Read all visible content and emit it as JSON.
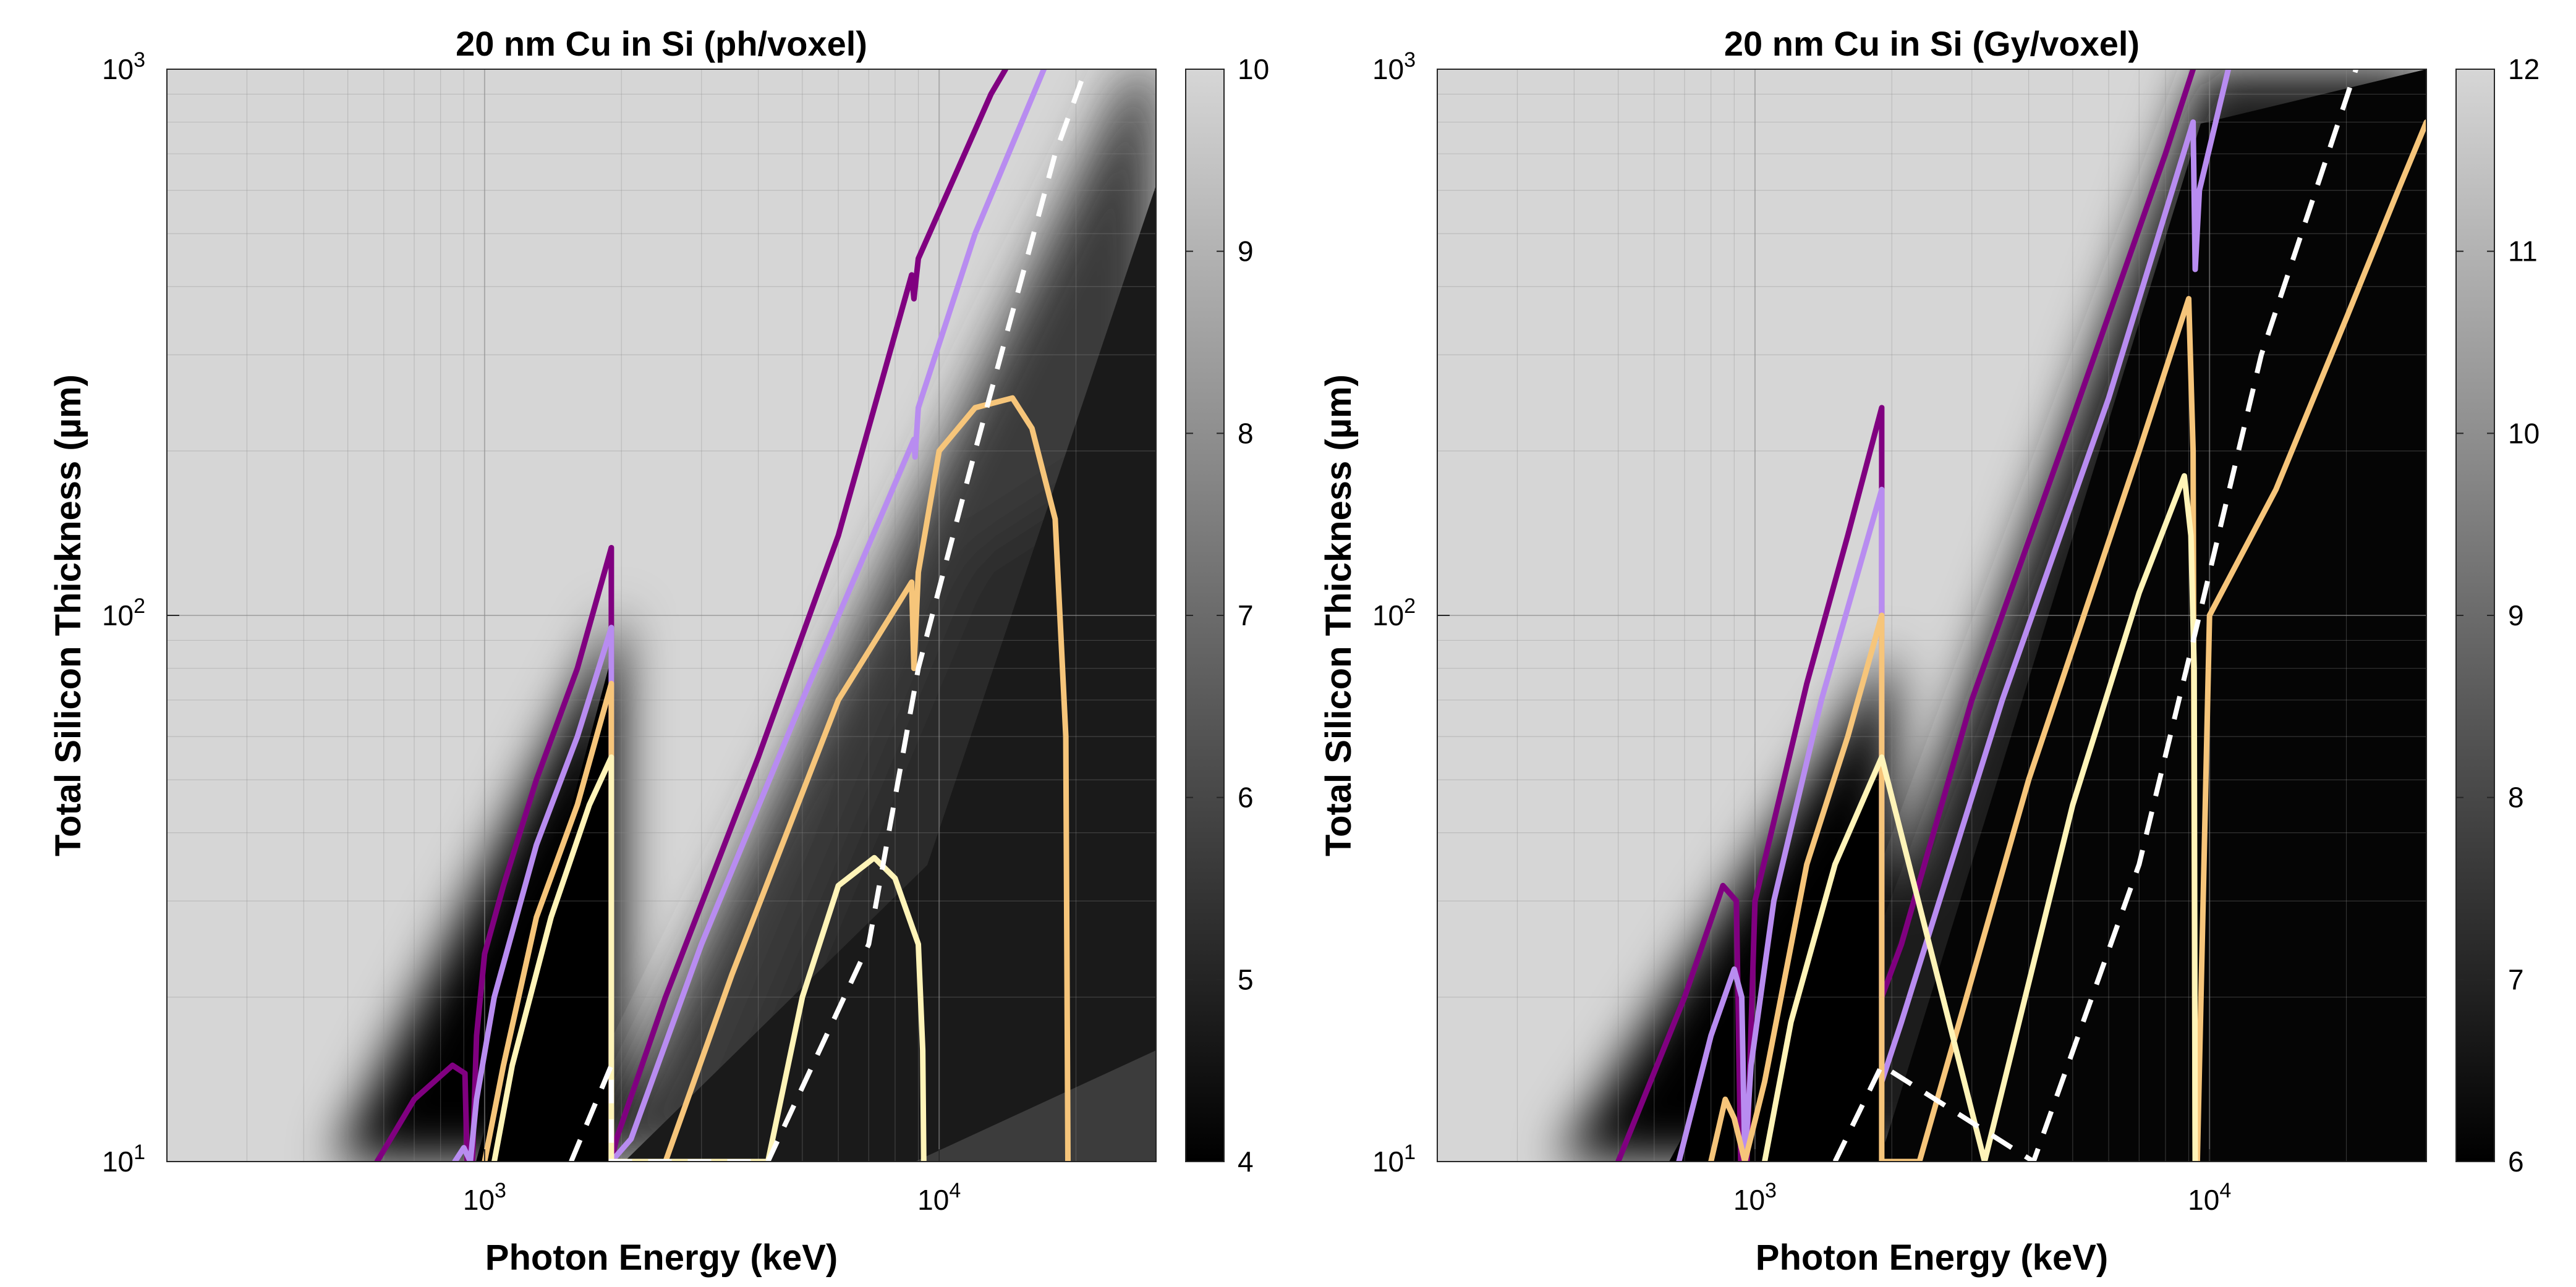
{
  "chart_data": [
    {
      "type": "heatmap",
      "title": "20 nm Cu in Si (ph/voxel)",
      "xlabel": "Photon Energy (keV)",
      "ylabel": "Total Silicon Thickness (µm)",
      "x_scale": "log",
      "y_scale": "log",
      "xlim": [
        200,
        30000
      ],
      "ylim": [
        10,
        1000
      ],
      "x_ticks": [
        {
          "value": 1000,
          "base": "10",
          "exp": "3"
        },
        {
          "value": 10000,
          "base": "10",
          "exp": "4"
        }
      ],
      "y_ticks": [
        {
          "value": 10,
          "base": "10",
          "exp": "1"
        },
        {
          "value": 100,
          "base": "10",
          "exp": "2"
        },
        {
          "value": 1000,
          "base": "10",
          "exp": "3"
        }
      ],
      "grid": true,
      "colorbar": {
        "min": 4,
        "max": 10,
        "ticks": [
          "4",
          "5",
          "6",
          "7",
          "8",
          "9",
          "10"
        ],
        "colormap": "gray"
      },
      "colors": {
        "purple": "#800080",
        "lavender": "#b88cf0",
        "orange": "#f6c57a",
        "cream": "#fff4b8",
        "white_dashed": "#ffffff"
      },
      "series": [
        {
          "color": "#800080",
          "points": [
            [
              580,
              10
            ],
            [
              700,
              13
            ],
            [
              850,
              15
            ],
            [
              905,
              14.5
            ],
            [
              915,
              10
            ],
            [
              940,
              10
            ],
            [
              960,
              17
            ],
            [
              1000,
              24
            ],
            [
              1100,
              32
            ],
            [
              1300,
              50
            ],
            [
              1600,
              80
            ],
            [
              1900,
              133
            ],
            [
              1900,
              10
            ],
            [
              1950,
              11
            ],
            [
              2500,
              20
            ],
            [
              4000,
              55
            ],
            [
              6000,
              140
            ],
            [
              8700,
              420
            ],
            [
              8800,
              380
            ],
            [
              9000,
              450
            ],
            [
              13000,
              900
            ],
            [
              14000,
              1000
            ]
          ]
        },
        {
          "color": "#b88cf0",
          "points": [
            [
              860,
              10
            ],
            [
              900,
              10.6
            ],
            [
              930,
              10
            ],
            [
              960,
              13
            ],
            [
              1050,
              20
            ],
            [
              1300,
              38
            ],
            [
              1600,
              60
            ],
            [
              1900,
              95
            ],
            [
              1900,
              10
            ],
            [
              2100,
              11
            ],
            [
              3000,
              25
            ],
            [
              5000,
              70
            ],
            [
              8800,
              210
            ],
            [
              8850,
              195
            ],
            [
              9000,
              240
            ],
            [
              12000,
              500
            ],
            [
              17000,
              1000
            ]
          ]
        },
        {
          "color": "#f6c57a",
          "points": [
            [
              1000,
              10
            ],
            [
              1100,
              15
            ],
            [
              1300,
              28
            ],
            [
              1600,
              45
            ],
            [
              1900,
              75
            ],
            [
              1900,
              10
            ],
            [
              2500,
              10
            ],
            [
              3500,
              22
            ],
            [
              6000,
              70
            ],
            [
              8700,
              115
            ],
            [
              8800,
              80
            ],
            [
              9000,
              120
            ],
            [
              10000,
              200
            ],
            [
              12000,
              240
            ],
            [
              14500,
              250
            ],
            [
              16000,
              220
            ],
            [
              18000,
              150
            ],
            [
              19000,
              60
            ],
            [
              19200,
              10
            ]
          ]
        },
        {
          "color": "#fff4b8",
          "points": [
            [
              1050,
              10
            ],
            [
              1150,
              15
            ],
            [
              1400,
              28
            ],
            [
              1700,
              45
            ],
            [
              1900,
              55
            ],
            [
              1900,
              10
            ],
            [
              4200,
              10
            ],
            [
              5000,
              20
            ],
            [
              6000,
              32
            ],
            [
              7200,
              36
            ],
            [
              8000,
              33
            ],
            [
              9000,
              25
            ],
            [
              9200,
              16
            ],
            [
              9250,
              10
            ]
          ]
        },
        {
          "color": "#ffffff",
          "dashed": true,
          "points": [
            [
              1550,
              10
            ],
            [
              1900,
              15
            ],
            [
              1900,
              10
            ],
            [
              4200,
              10
            ],
            [
              7000,
              25
            ],
            [
              9000,
              80
            ],
            [
              12000,
              200
            ],
            [
              18000,
              700
            ],
            [
              21000,
              1000
            ]
          ]
        }
      ]
    },
    {
      "type": "heatmap",
      "title": "20 nm Cu in Si (Gy/voxel)",
      "xlabel": "Photon Energy (keV)",
      "ylabel": "Total Silicon Thickness (µm)",
      "x_scale": "log",
      "y_scale": "log",
      "xlim": [
        200,
        30000
      ],
      "ylim": [
        10,
        1000
      ],
      "x_ticks": [
        {
          "value": 1000,
          "base": "10",
          "exp": "3"
        },
        {
          "value": 10000,
          "base": "10",
          "exp": "4"
        }
      ],
      "y_ticks": [
        {
          "value": 10,
          "base": "10",
          "exp": "1"
        },
        {
          "value": 100,
          "base": "10",
          "exp": "2"
        },
        {
          "value": 1000,
          "base": "10",
          "exp": "3"
        }
      ],
      "grid": true,
      "colorbar": {
        "min": 6,
        "max": 12,
        "ticks": [
          "6",
          "7",
          "8",
          "9",
          "10",
          "11",
          "12"
        ],
        "colormap": "gray"
      },
      "series": [
        {
          "color": "#800080",
          "points": [
            [
              500,
              10
            ],
            [
              700,
              20
            ],
            [
              850,
              32
            ],
            [
              910,
              30
            ],
            [
              930,
              10
            ],
            [
              960,
              10
            ],
            [
              1000,
              30
            ],
            [
              1300,
              75
            ],
            [
              1600,
              140
            ],
            [
              1900,
              240
            ],
            [
              1900,
              20
            ],
            [
              2100,
              25
            ],
            [
              3000,
              70
            ],
            [
              5000,
              230
            ],
            [
              8000,
              700
            ],
            [
              9200,
              1000
            ]
          ]
        },
        {
          "color": "#b88cf0",
          "points": [
            [
              680,
              10
            ],
            [
              800,
              17
            ],
            [
              900,
              22.5
            ],
            [
              935,
              20
            ],
            [
              950,
              10
            ],
            [
              980,
              15
            ],
            [
              1100,
              30
            ],
            [
              1400,
              70
            ],
            [
              1900,
              170
            ],
            [
              1900,
              14
            ],
            [
              2100,
              18
            ],
            [
              3500,
              70
            ],
            [
              6000,
              250
            ],
            [
              9200,
              800
            ],
            [
              9300,
              430
            ],
            [
              9500,
              600
            ],
            [
              11000,
              1000
            ]
          ]
        },
        {
          "color": "#f6c57a",
          "points": [
            [
              800,
              10
            ],
            [
              860,
              13
            ],
            [
              900,
              12
            ],
            [
              950,
              10
            ],
            [
              1050,
              14
            ],
            [
              1300,
              35
            ],
            [
              1600,
              60
            ],
            [
              1900,
              100
            ],
            [
              1900,
              10
            ],
            [
              2300,
              10
            ],
            [
              4000,
              50
            ],
            [
              7000,
              200
            ],
            [
              9000,
              380
            ],
            [
              9200,
              200
            ],
            [
              9300,
              10
            ],
            [
              9400,
              10
            ],
            [
              10000,
              100
            ],
            [
              14000,
              170
            ],
            [
              20000,
              350
            ],
            [
              26000,
              600
            ],
            [
              30000,
              800
            ]
          ]
        },
        {
          "color": "#fff4b8",
          "points": [
            [
              1050,
              10
            ],
            [
              1200,
              18
            ],
            [
              1500,
              35
            ],
            [
              1900,
              55
            ],
            [
              3200,
              10
            ],
            [
              5000,
              45
            ],
            [
              7000,
              110
            ],
            [
              8800,
              180
            ],
            [
              9100,
              140
            ],
            [
              9250,
              80
            ],
            [
              9300,
              10
            ]
          ]
        },
        {
          "color": "#ffffff",
          "dashed": true,
          "points": [
            [
              1500,
              10
            ],
            [
              1900,
              15
            ],
            [
              4100,
              10
            ],
            [
              7000,
              35
            ],
            [
              9500,
              100
            ],
            [
              13000,
              300
            ],
            [
              21000,
              1000
            ]
          ]
        }
      ]
    }
  ]
}
